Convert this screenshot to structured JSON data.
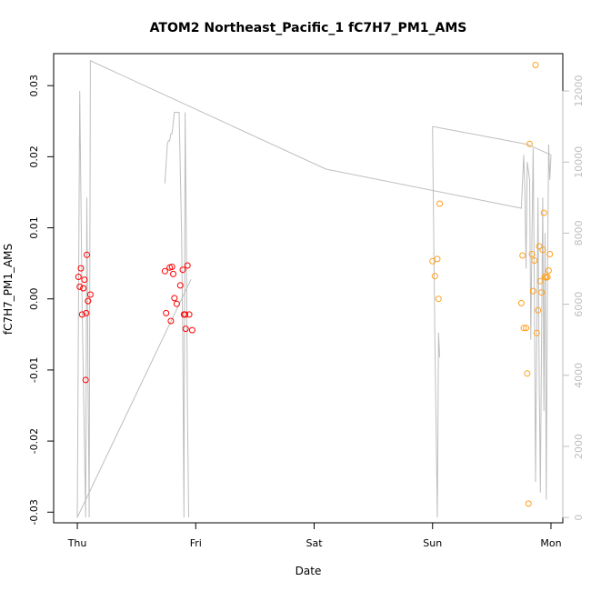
{
  "chart_data": {
    "type": "scatter",
    "title": "ATOM2 Northeast_Pacific_1 fC7H7_PM1_AMS",
    "xlabel": "Date",
    "ylabel": "fC7H7_PM1_AMS",
    "x_ticks": [
      {
        "day": 0,
        "label": "Thu"
      },
      {
        "day": 1,
        "label": "Fri"
      },
      {
        "day": 2,
        "label": "Sat"
      },
      {
        "day": 3,
        "label": "Sun"
      },
      {
        "day": 4,
        "label": "Mon"
      }
    ],
    "xlim": [
      -0.2,
      4.1
    ],
    "ylim": [
      -0.0315,
      0.0345
    ],
    "y_ticks": [
      "-0.03",
      "-0.02",
      "-0.01",
      "0.00",
      "0.01",
      "0.02",
      "0.03"
    ],
    "y2lim": [
      -150,
      13050
    ],
    "y2_ticks": [
      "0",
      "2000",
      "4000",
      "6000",
      "8000",
      "10000",
      "12000"
    ],
    "grid": false,
    "colors": {
      "red_series": "#ff0000",
      "orange_series": "#ff9f1c",
      "altitude_line": "#bebebe",
      "axis": "#000000",
      "right_axis": "#bebebe"
    },
    "series": [
      {
        "color": "#ff0000",
        "points": [
          [
            0.01,
            0.0031
          ],
          [
            0.02,
            0.0017
          ],
          [
            0.03,
            0.0043
          ],
          [
            0.04,
            -0.0022
          ],
          [
            0.05,
            0.0015
          ],
          [
            0.06,
            0.0027
          ],
          [
            0.07,
            -0.0114
          ],
          [
            0.075,
            -0.002
          ],
          [
            0.08,
            0.0062
          ],
          [
            0.09,
            -0.0003
          ],
          [
            0.11,
            0.0006
          ],
          [
            0.74,
            0.0039
          ],
          [
            0.75,
            -0.002
          ],
          [
            0.78,
            0.0044
          ],
          [
            0.79,
            -0.0031
          ],
          [
            0.8,
            0.0045
          ],
          [
            0.81,
            0.0035
          ],
          [
            0.82,
            0.0001
          ],
          [
            0.84,
            -0.0007
          ],
          [
            0.87,
            0.0019
          ],
          [
            0.89,
            0.0041
          ],
          [
            0.9,
            -0.0022
          ],
          [
            0.91,
            -0.0022
          ],
          [
            0.915,
            -0.0042
          ],
          [
            0.93,
            0.0047
          ],
          [
            0.945,
            -0.0022
          ],
          [
            0.97,
            -0.0044
          ]
        ]
      },
      {
        "color": "#ff9f1c",
        "points": [
          [
            3.0,
            0.0053
          ],
          [
            3.02,
            0.0032
          ],
          [
            3.04,
            0.0056
          ],
          [
            3.05,
            0.0
          ],
          [
            3.06,
            0.0134
          ],
          [
            3.75,
            -0.0006
          ],
          [
            3.76,
            0.0061
          ],
          [
            3.77,
            -0.0041
          ],
          [
            3.79,
            -0.0041
          ],
          [
            3.8,
            -0.0105
          ],
          [
            3.81,
            -0.0288
          ],
          [
            3.82,
            0.0218
          ],
          [
            3.84,
            0.0063
          ],
          [
            3.85,
            0.0011
          ],
          [
            3.86,
            0.0054
          ],
          [
            3.87,
            0.0329
          ],
          [
            3.88,
            -0.0048
          ],
          [
            3.89,
            -0.0016
          ],
          [
            3.9,
            0.0074
          ],
          [
            3.91,
            0.0025
          ],
          [
            3.92,
            0.0009
          ],
          [
            3.93,
            0.0069
          ],
          [
            3.94,
            0.0121
          ],
          [
            3.95,
            0.0031
          ],
          [
            3.96,
            0.003
          ],
          [
            3.97,
            0.0031
          ],
          [
            3.98,
            0.004
          ],
          [
            3.99,
            0.0063
          ]
        ]
      }
    ],
    "altitude_line": [
      [
        0.0,
        0
      ],
      [
        0.02,
        12000
      ],
      [
        0.04,
        6000
      ],
      [
        0.06,
        2000
      ],
      [
        0.07,
        0
      ],
      [
        0.08,
        9000
      ],
      [
        0.09,
        4000
      ],
      [
        0.1,
        0
      ],
      [
        0.11,
        12850
      ],
      [
        2.1,
        9800
      ],
      [
        3.75,
        8700
      ],
      [
        3.77,
        10200
      ],
      [
        3.78,
        9200
      ],
      [
        3.79,
        7000
      ],
      [
        3.8,
        10000
      ],
      [
        3.82,
        9500
      ],
      [
        3.83,
        5000
      ],
      [
        3.84,
        8000
      ],
      [
        3.85,
        10400
      ],
      [
        3.86,
        6500
      ],
      [
        3.87,
        1000
      ],
      [
        3.89,
        9000
      ],
      [
        3.9,
        4000
      ],
      [
        3.91,
        700
      ],
      [
        3.92,
        5000
      ],
      [
        3.93,
        9000
      ],
      [
        3.94,
        3000
      ],
      [
        3.95,
        8000
      ],
      [
        3.96,
        500
      ],
      [
        3.97,
        6500
      ],
      [
        3.98,
        10500
      ],
      [
        3.99,
        9500
      ],
      [
        4.0,
        10200
      ]
    ],
    "altitude_segments": [
      [
        [
          0.74,
          9400
        ],
        [
          0.76,
          10500
        ],
        [
          0.77,
          10600
        ],
        [
          0.78,
          10600
        ],
        [
          0.79,
          10800
        ],
        [
          0.8,
          10800
        ],
        [
          0.82,
          11400
        ],
        [
          0.84,
          11400
        ],
        [
          0.86,
          11400
        ],
        [
          0.88,
          8000
        ],
        [
          0.89,
          5000
        ],
        [
          0.9,
          0
        ],
        [
          0.91,
          11400
        ],
        [
          0.92,
          8000
        ],
        [
          0.93,
          3000
        ],
        [
          0.94,
          0
        ]
      ],
      [
        [
          0.0,
          0
        ],
        [
          0.96,
          6700
        ]
      ],
      [
        [
          3.0,
          11000
        ],
        [
          3.8,
          10500
        ],
        [
          4.0,
          10200
        ]
      ],
      [
        [
          3.0,
          11000
        ],
        [
          3.02,
          5000
        ],
        [
          3.04,
          0
        ],
        [
          3.05,
          5200
        ],
        [
          3.06,
          4500
        ]
      ]
    ]
  }
}
